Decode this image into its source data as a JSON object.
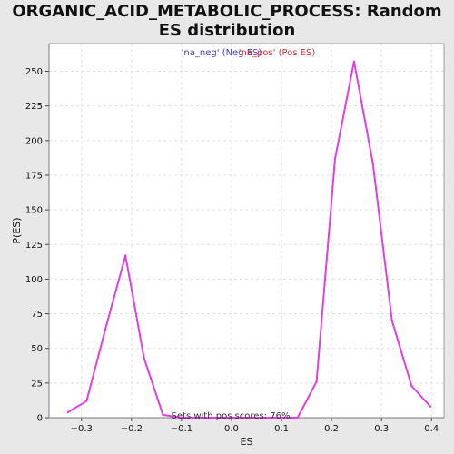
{
  "title": "ORGANIC_ACID_METABOLIC_PROCESS: Random ES distribution",
  "colors": {
    "background": "#e8e8e8",
    "plot_background": "#ffffff",
    "line": "#e040e0",
    "neg_legend": "#4040c0",
    "pos_legend": "#d03030",
    "grid": "#e0e0e0"
  },
  "chart_data": {
    "type": "line",
    "xlabel": "ES",
    "ylabel": "P(ES)",
    "xlim": [
      -0.365,
      0.425
    ],
    "ylim": [
      0,
      270
    ],
    "xticks": [
      -0.3,
      -0.2,
      -0.1,
      0.0,
      0.1,
      0.2,
      0.3,
      0.4
    ],
    "xtick_labels": [
      "−0.3",
      "−0.2",
      "−0.1",
      "0.0",
      "0.1",
      "0.2",
      "0.3",
      "0.4"
    ],
    "yticks": [
      0,
      25,
      50,
      75,
      100,
      125,
      150,
      175,
      200,
      225,
      250
    ],
    "grid": true,
    "legend": [
      {
        "label": "'na_neg' (Neg ES)",
        "color": "#4040c0"
      },
      {
        "label": "'na_pos' (Pos ES)",
        "color": "#d03030"
      }
    ],
    "annotation": "Sets with pos scores: 76%",
    "series": [
      {
        "color": "#e040e0",
        "x": [
          -0.327,
          -0.29,
          -0.25,
          -0.212,
          -0.175,
          -0.137,
          -0.1,
          0.132,
          0.17,
          0.207,
          0.245,
          0.283,
          0.321,
          0.36,
          0.398
        ],
        "y": [
          4,
          12,
          67,
          117,
          43,
          2,
          0,
          0,
          26,
          187,
          257,
          183,
          70,
          23,
          8
        ]
      }
    ]
  }
}
